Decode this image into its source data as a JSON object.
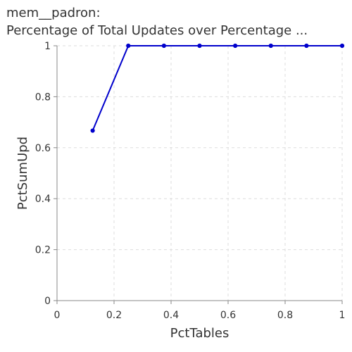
{
  "chart_data": {
    "type": "line",
    "title": "mem__padron:",
    "subtitle": "Percentage of Total Updates over Percentage ...",
    "xlabel": "PctTables",
    "ylabel": "PctSumUpd",
    "xlim": [
      0,
      1
    ],
    "ylim": [
      0,
      1
    ],
    "x_ticks": [
      "0",
      "0.2",
      "0.4",
      "0.6",
      "0.8",
      "1"
    ],
    "y_ticks": [
      "0",
      "0.2",
      "0.4",
      "0.6",
      "0.8",
      "1"
    ],
    "grid": true,
    "series": [
      {
        "color": "#0000cc",
        "x": [
          0.125,
          0.25,
          0.375,
          0.5,
          0.625,
          0.75,
          0.875,
          1.0
        ],
        "y": [
          0.667,
          1,
          1,
          1,
          1,
          1,
          1,
          1
        ]
      }
    ]
  }
}
